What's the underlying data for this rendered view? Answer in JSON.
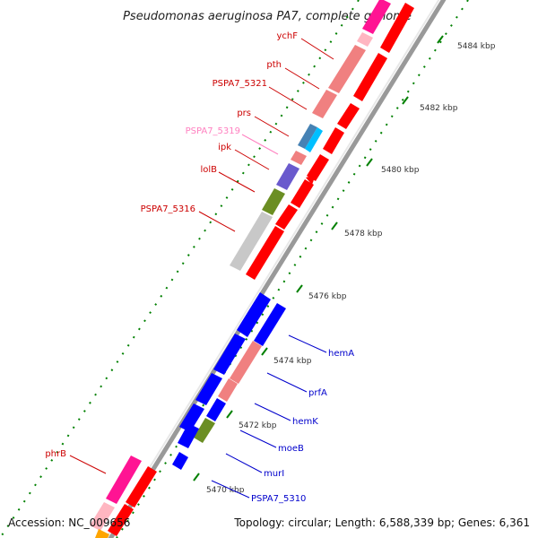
{
  "title": "Pseudomonas aeruginosa PA7, complete genome",
  "footer": {
    "accession": "Accession: NC_009656",
    "topology": "Topology: circular; Length: 6,588,339 bp; Genes: 6,361"
  },
  "colors": {
    "red": "#ff0000",
    "pink": "#f08080",
    "magenta": "#ff1493",
    "lightpink": "#ffb6c1",
    "blue": "#0000ff",
    "steelblue": "#4682b4",
    "cyan": "#00bfff",
    "purple": "#6a5acd",
    "olive": "#6b8e23",
    "grey": "#c8c8c8",
    "orange": "#ffa500",
    "label_red": "#cc0000",
    "label_pink": "#ff80c0",
    "label_blue": "#0000cc",
    "tick_green": "#008000"
  },
  "ruler_labels": [
    {
      "text": "5484 kbp"
    },
    {
      "text": "5482 kbp"
    },
    {
      "text": "5480 kbp"
    },
    {
      "text": "5478 kbp"
    },
    {
      "text": "5476 kbp"
    },
    {
      "text": "5474 kbp"
    },
    {
      "text": "5472 kbp"
    },
    {
      "text": "5470 kbp"
    }
  ],
  "gene_labels": [
    {
      "text": "ychF",
      "color": "label_red"
    },
    {
      "text": "pth",
      "color": "label_red"
    },
    {
      "text": "PSPA7_5321",
      "color": "label_red"
    },
    {
      "text": "prs",
      "color": "label_red"
    },
    {
      "text": "PSPA7_5319",
      "color": "label_pink"
    },
    {
      "text": "ipk",
      "color": "label_red"
    },
    {
      "text": "lolB",
      "color": "label_red"
    },
    {
      "text": "PSPA7_5316",
      "color": "label_red"
    },
    {
      "text": "hemA",
      "color": "label_blue"
    },
    {
      "text": "prfA",
      "color": "label_blue"
    },
    {
      "text": "hemK",
      "color": "label_blue"
    },
    {
      "text": "moeB",
      "color": "label_blue"
    },
    {
      "text": "murI",
      "color": "label_blue"
    },
    {
      "text": "PSPA7_5310",
      "color": "label_blue"
    },
    {
      "text": "phrB",
      "color": "label_red"
    }
  ]
}
